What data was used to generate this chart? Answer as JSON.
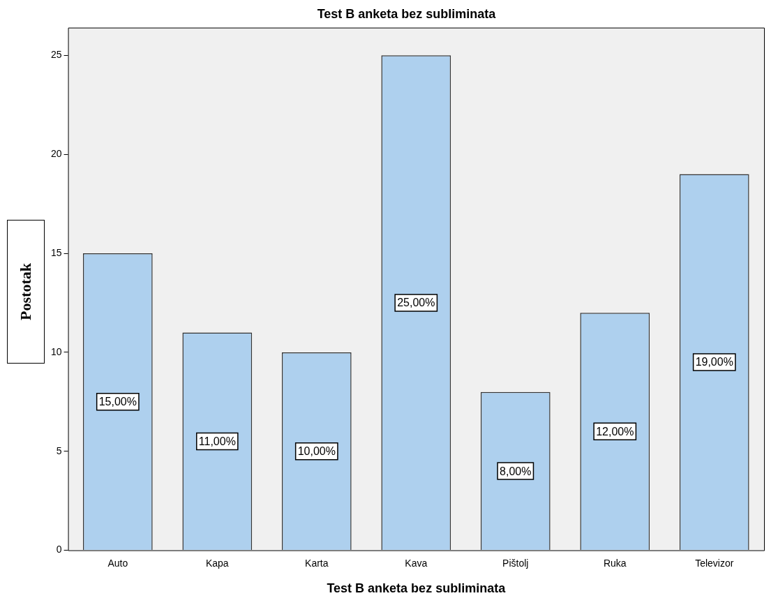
{
  "chart_data": {
    "type": "bar",
    "title": "Test B anketa bez subliminata",
    "xlabel": "Test B anketa bez subliminata",
    "ylabel": "Postotak",
    "categories": [
      "Auto",
      "Kapa",
      "Karta",
      "Kava",
      "Pištolj",
      "Ruka",
      "Televizor"
    ],
    "values": [
      15,
      11,
      10,
      25,
      8,
      12,
      19
    ],
    "value_labels": [
      "15,00%",
      "11,00%",
      "10,00%",
      "25,00%",
      "8,00%",
      "12,00%",
      "19,00%"
    ],
    "color": "#aed0ee",
    "ylim": [
      0,
      26.4
    ],
    "yticks": [
      0,
      5,
      10,
      15,
      20,
      25
    ],
    "legend": false
  }
}
